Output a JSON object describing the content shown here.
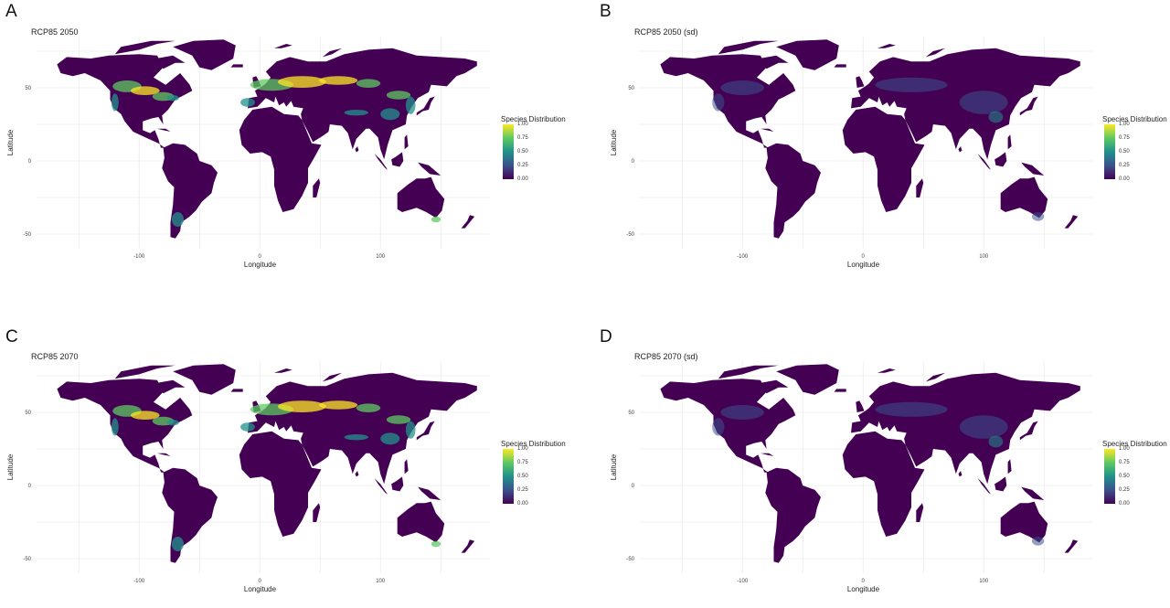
{
  "colors": {
    "land_base": "#440154",
    "low": "#3b528b",
    "mid": "#21918c",
    "high": "#5ec962",
    "max": "#fde725",
    "grid": "#e6e6e6"
  },
  "axes": {
    "x_label": "Longitude",
    "y_label": "Latitude",
    "x_ticks": [
      "-100",
      "0",
      "100"
    ],
    "y_ticks": [
      "50",
      "0",
      "-50"
    ]
  },
  "legend": {
    "title": "Species Distribution",
    "ticks": [
      "1.00",
      "0.75",
      "0.50",
      "0.25",
      "0.00"
    ],
    "colormap": "viridis",
    "range": [
      0,
      1
    ]
  },
  "panels": [
    {
      "letter": "A",
      "title": "RCP85 2050",
      "kind": "mean"
    },
    {
      "letter": "B",
      "title": "RCP85 2050 (sd)",
      "kind": "sd"
    },
    {
      "letter": "C",
      "title": "RCP85 2070",
      "kind": "mean"
    },
    {
      "letter": "D",
      "title": "RCP85 2070 (sd)",
      "kind": "sd"
    }
  ]
}
